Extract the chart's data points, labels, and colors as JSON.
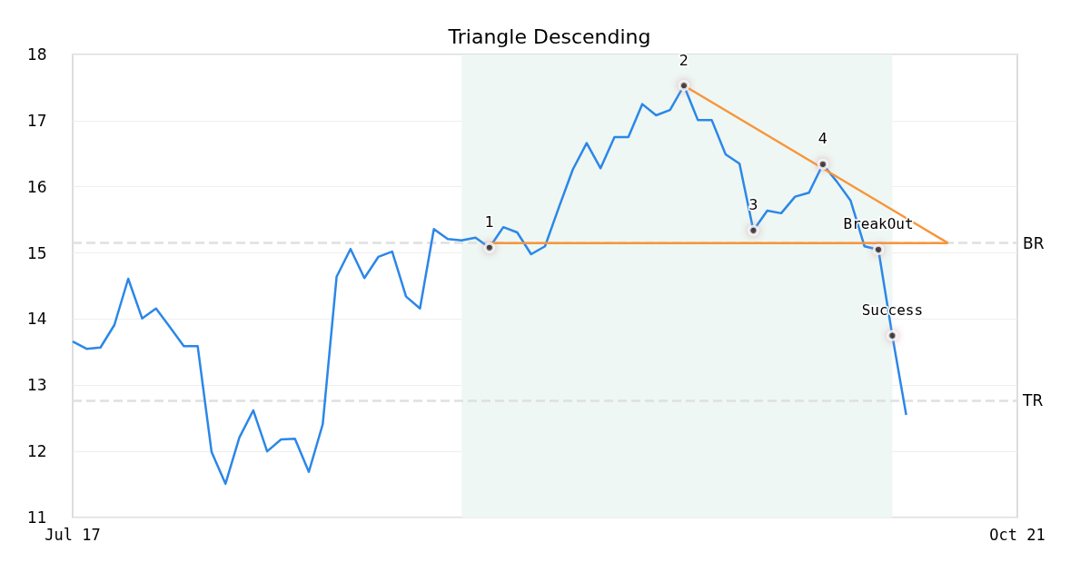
{
  "chart_data": {
    "type": "line",
    "title": "Triangle Descending",
    "categories": [
      "Jul 17",
      null,
      null,
      null,
      null,
      null,
      null,
      null,
      null,
      null,
      null,
      null,
      null,
      null,
      null,
      null,
      null,
      null,
      null,
      null,
      null,
      null,
      null,
      null,
      null,
      null,
      null,
      null,
      null,
      null,
      null,
      null,
      null,
      null,
      null,
      null,
      null,
      null,
      null,
      null,
      null,
      null,
      null,
      null,
      null,
      null,
      null,
      null,
      null,
      null,
      null,
      null,
      null,
      null,
      null,
      null,
      null,
      null,
      null,
      null,
      null,
      null,
      null,
      null,
      null,
      null,
      null,
      null,
      "Oct 21"
    ],
    "ylim": [
      11,
      18
    ],
    "yticks": [
      11,
      12,
      13,
      14,
      15,
      16,
      17,
      18
    ],
    "grid": "y",
    "series": [
      {
        "color": "#2b87e8",
        "marker": "none",
        "values": [
          13.66,
          13.55,
          13.57,
          13.91,
          14.61,
          14.01,
          14.16,
          13.88,
          13.59,
          13.59,
          11.99,
          11.51,
          12.21,
          12.62,
          12.0,
          12.18,
          12.19,
          11.69,
          12.41,
          14.64,
          15.06,
          14.62,
          14.94,
          15.02,
          14.34,
          14.16,
          15.36,
          15.21,
          15.19,
          15.23,
          15.08,
          15.39,
          15.31,
          14.98,
          15.1,
          15.69,
          16.26,
          16.66,
          16.28,
          16.75,
          16.75,
          17.25,
          17.08,
          17.16,
          17.53,
          17.01,
          17.01,
          16.49,
          16.35,
          15.34,
          15.64,
          15.6,
          15.85,
          15.91,
          16.34,
          16.08,
          15.79,
          15.1,
          15.05,
          13.75,
          12.55,
          null,
          null,
          null,
          null,
          null,
          null,
          null,
          null
        ]
      },
      {
        "type": "line",
        "color": "#f7953b",
        "marker": "none",
        "values": [
          null,
          null,
          null,
          null,
          null,
          null,
          null,
          null,
          null,
          null,
          null,
          null,
          null,
          null,
          null,
          null,
          null,
          null,
          null,
          null,
          null,
          null,
          null,
          null,
          null,
          null,
          null,
          null,
          null,
          null,
          15.15,
          null,
          null,
          null,
          null,
          null,
          null,
          null,
          null,
          null,
          null,
          null,
          null,
          null,
          null,
          null,
          null,
          null,
          null,
          null,
          null,
          null,
          null,
          null,
          null,
          null,
          null,
          null,
          null,
          null,
          null,
          null,
          null,
          15.15,
          null,
          null,
          null,
          null,
          null
        ]
      },
      {
        "type": "line",
        "color": "#f7953b",
        "marker": "none",
        "values": [
          null,
          null,
          null,
          null,
          null,
          null,
          null,
          null,
          null,
          null,
          null,
          null,
          null,
          null,
          null,
          null,
          null,
          null,
          null,
          null,
          null,
          null,
          null,
          null,
          null,
          null,
          null,
          null,
          null,
          null,
          null,
          null,
          null,
          null,
          null,
          null,
          null,
          null,
          null,
          null,
          null,
          null,
          null,
          null,
          17.53,
          null,
          null,
          null,
          null,
          null,
          null,
          null,
          null,
          null,
          null,
          null,
          null,
          null,
          null,
          null,
          null,
          null,
          null,
          15.15,
          null,
          null,
          null,
          null,
          null
        ]
      },
      {
        "type": "scatter",
        "color": "#000000",
        "marker": "circle",
        "values": [
          null,
          null,
          null,
          null,
          null,
          null,
          null,
          null,
          null,
          null,
          null,
          null,
          null,
          null,
          null,
          null,
          null,
          null,
          null,
          null,
          null,
          null,
          null,
          null,
          null,
          null,
          null,
          null,
          null,
          null,
          15.08,
          null,
          null,
          null,
          null,
          null,
          null,
          null,
          null,
          null,
          null,
          null,
          null,
          null,
          17.53,
          null,
          null,
          null,
          null,
          15.34,
          null,
          null,
          null,
          null,
          16.34,
          null,
          null,
          null,
          15.05,
          13.75,
          null,
          null,
          null,
          null,
          null,
          null,
          null,
          null,
          null
        ]
      }
    ],
    "ref_lines": [
      {
        "axis": "y",
        "value": 15.15,
        "label": "BR",
        "color": "#e0e0e0",
        "line_style": "dashed"
      },
      {
        "axis": "y",
        "value": 12.77,
        "label": "TR",
        "color": "#e0e0e0",
        "line_style": "dashed"
      }
    ],
    "annotations": [
      {
        "text": "1",
        "y": 15.08
      },
      {
        "text": "2",
        "y": 17.53
      },
      {
        "text": "3",
        "y": 15.34
      },
      {
        "text": "4",
        "y": 16.34
      },
      {
        "text": "BreakOut",
        "y": 15.05
      },
      {
        "text": "Success",
        "y": 13.75
      }
    ]
  }
}
